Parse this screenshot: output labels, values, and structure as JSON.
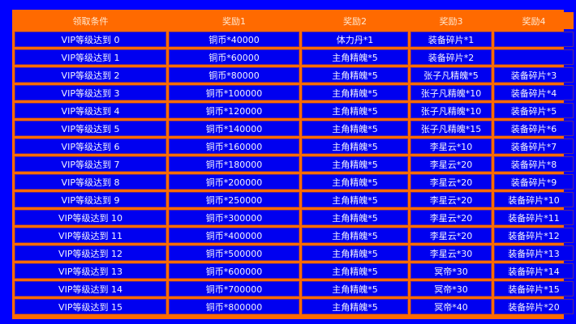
{
  "headers": [
    "领取条件",
    "奖励1",
    "奖励2",
    "奖励3",
    "奖励4"
  ],
  "rows": [
    [
      "VIP等级达到 0",
      "铜币*40000",
      "体力丹*1",
      "装备碎片*1",
      ""
    ],
    [
      "VIP等级达到 1",
      "铜币*60000",
      "主角精魄*5",
      "装备碎片*2",
      ""
    ],
    [
      "VIP等级达到 2",
      "铜币*80000",
      "主角精魄*5",
      "张子凡精魄*5",
      "装备碎片*3"
    ],
    [
      "VIP等级达到 3",
      "铜币*100000",
      "主角精魄*5",
      "张子凡精魄*10",
      "装备碎片*4"
    ],
    [
      "VIP等级达到 4",
      "铜币*120000",
      "主角精魄*5",
      "张子凡精魄*10",
      "装备碎片*5"
    ],
    [
      "VIP等级达到 5",
      "铜币*140000",
      "主角精魄*5",
      "张子凡精魄*15",
      "装备碎片*6"
    ],
    [
      "VIP等级达到 6",
      "铜币*160000",
      "主角精魄*5",
      "李星云*10",
      "装备碎片*7"
    ],
    [
      "VIP等级达到 7",
      "铜币*180000",
      "主角精魄*5",
      "李星云*20",
      "装备碎片*8"
    ],
    [
      "VIP等级达到 8",
      "铜币*200000",
      "主角精魄*5",
      "李星云*20",
      "装备碎片*9"
    ],
    [
      "VIP等级达到 9",
      "铜币*250000",
      "主角精魄*5",
      "李星云*20",
      "装备碎片*10"
    ],
    [
      "VIP等级达到 10",
      "铜币*300000",
      "主角精魄*5",
      "李星云*20",
      "装备碎片*11"
    ],
    [
      "VIP等级达到 11",
      "铜币*400000",
      "主角精魄*5",
      "李星云*20",
      "装备碎片*12"
    ],
    [
      "VIP等级达到 12",
      "铜币*500000",
      "主角精魄*5",
      "李星云*30",
      "装备碎片*13"
    ],
    [
      "VIP等级达到 13",
      "铜币*600000",
      "主角精魄*5",
      "冥帝*30",
      "装备碎片*14"
    ],
    [
      "VIP等级达到 14",
      "铜币*700000",
      "主角精魄*5",
      "冥帝*30",
      "装备碎片*15"
    ],
    [
      "VIP等级达到 15",
      "铜币*800000",
      "主角精魄*5",
      "冥帝*40",
      "装备碎片*20"
    ]
  ],
  "colors": {
    "background": "#0000ff",
    "header": "#ff6a00",
    "cell": "#0000f0",
    "text": "#ffffff"
  }
}
